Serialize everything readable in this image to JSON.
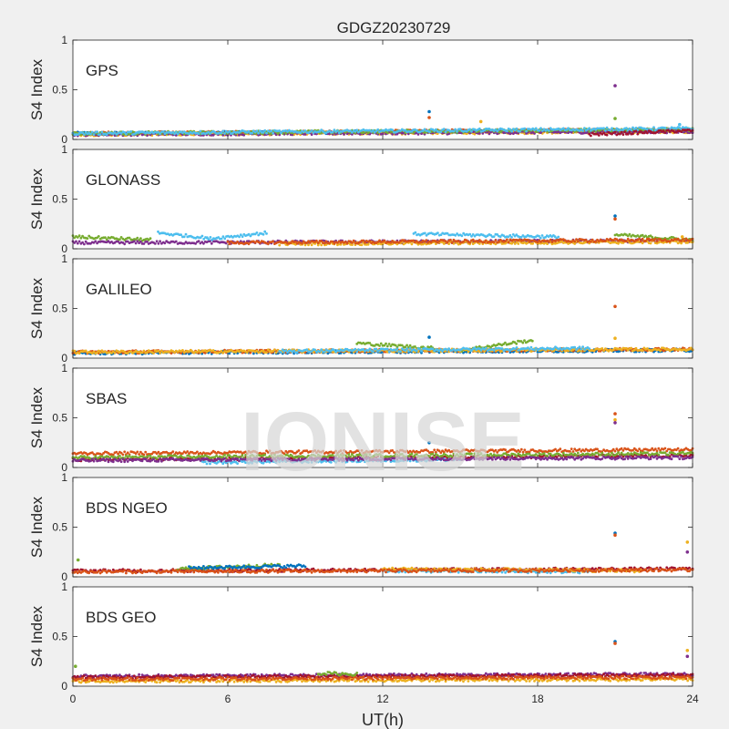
{
  "figure": {
    "title": "GDGZ20230729",
    "watermark": "IONISE",
    "background_color": "#f0f0f0"
  },
  "chart_data": {
    "type": "scatter",
    "xlabel": "UT(h)",
    "ylabel": "S4 Index",
    "xlim": [
      0,
      24
    ],
    "ylim": [
      0,
      1
    ],
    "x_ticks": [
      "0",
      "6",
      "12",
      "18",
      "24"
    ],
    "y_ticks": [
      "0",
      "0.5",
      "1"
    ],
    "grid": false,
    "series_colors": [
      "#0072BD",
      "#D95319",
      "#EDB120",
      "#7E2F8E",
      "#77AC30",
      "#4DBEEE",
      "#A2142F"
    ],
    "panels": [
      {
        "label": "GPS",
        "baseline": 0.08,
        "bands": [
          {
            "color": "#0072BD",
            "x": [
              0,
              24
            ],
            "y": [
              0.06,
              0.09
            ]
          },
          {
            "color": "#D95319",
            "x": [
              0,
              24
            ],
            "y": [
              0.06,
              0.1
            ]
          },
          {
            "color": "#EDB120",
            "x": [
              0,
              24
            ],
            "y": [
              0.05,
              0.08
            ]
          },
          {
            "color": "#7E2F8E",
            "x": [
              0,
              24
            ],
            "y": [
              0.05,
              0.08
            ]
          },
          {
            "color": "#77AC30",
            "x": [
              0,
              24
            ],
            "y": [
              0.06,
              0.1
            ]
          },
          {
            "color": "#4DBEEE",
            "x": [
              0,
              24
            ],
            "y": [
              0.06,
              0.11
            ]
          },
          {
            "color": "#A2142F",
            "x": [
              20,
              24
            ],
            "y": [
              0.05,
              0.09
            ]
          }
        ],
        "spikes": [
          {
            "x": 13.8,
            "y": 0.28
          },
          {
            "x": 13.8,
            "y": 0.22
          },
          {
            "x": 15.8,
            "y": 0.18
          },
          {
            "x": 21.0,
            "y": 0.54
          },
          {
            "x": 21.0,
            "y": 0.21
          },
          {
            "x": 23.5,
            "y": 0.15
          }
        ]
      },
      {
        "label": "GLONASS",
        "baseline": 0.08,
        "bands": [
          {
            "color": "#77AC30",
            "x": [
              0,
              3
            ],
            "y": [
              0.12,
              0.09
            ]
          },
          {
            "color": "#7E2F8E",
            "x": [
              0,
              24
            ],
            "y": [
              0.06,
              0.08
            ]
          },
          {
            "color": "#4DBEEE",
            "x": [
              3.3,
              5.2
            ],
            "y": [
              0.16,
              0.11
            ]
          },
          {
            "color": "#4DBEEE",
            "x": [
              5.2,
              7.5
            ],
            "y": [
              0.1,
              0.16
            ]
          },
          {
            "color": "#4DBEEE",
            "x": [
              13.2,
              18.8
            ],
            "y": [
              0.15,
              0.12
            ]
          },
          {
            "color": "#77AC30",
            "x": [
              21.0,
              24
            ],
            "y": [
              0.14,
              0.09
            ]
          },
          {
            "color": "#EDB120",
            "x": [
              8,
              24
            ],
            "y": [
              0.05,
              0.07
            ]
          },
          {
            "color": "#D95319",
            "x": [
              6,
              24
            ],
            "y": [
              0.06,
              0.09
            ]
          }
        ],
        "spikes": [
          {
            "x": 21.0,
            "y": 0.33
          },
          {
            "x": 21.0,
            "y": 0.3
          },
          {
            "x": 23.6,
            "y": 0.12
          }
        ]
      },
      {
        "label": "GALILEO",
        "baseline": 0.07,
        "bands": [
          {
            "color": "#0072BD",
            "x": [
              0,
              24
            ],
            "y": [
              0.05,
              0.08
            ]
          },
          {
            "color": "#D95319",
            "x": [
              0,
              24
            ],
            "y": [
              0.06,
              0.09
            ]
          },
          {
            "color": "#77AC30",
            "x": [
              11,
              14
            ],
            "y": [
              0.15,
              0.1
            ]
          },
          {
            "color": "#77AC30",
            "x": [
              15,
              17.8
            ],
            "y": [
              0.08,
              0.18
            ]
          },
          {
            "color": "#EDB120",
            "x": [
              0,
              24
            ],
            "y": [
              0.06,
              0.09
            ]
          },
          {
            "color": "#4DBEEE",
            "x": [
              8,
              20
            ],
            "y": [
              0.07,
              0.1
            ]
          }
        ],
        "spikes": [
          {
            "x": 13.8,
            "y": 0.21
          },
          {
            "x": 21.0,
            "y": 0.52
          },
          {
            "x": 21.0,
            "y": 0.2
          }
        ]
      },
      {
        "label": "SBAS",
        "baseline": 0.12,
        "bands": [
          {
            "color": "#D95319",
            "x": [
              0,
              24
            ],
            "y": [
              0.14,
              0.18
            ]
          },
          {
            "color": "#A2142F",
            "x": [
              0,
              24
            ],
            "y": [
              0.08,
              0.12
            ]
          },
          {
            "color": "#77AC30",
            "x": [
              0,
              24
            ],
            "y": [
              0.1,
              0.14
            ]
          },
          {
            "color": "#4DBEEE",
            "x": [
              5,
              15
            ],
            "y": [
              0.05,
              0.08
            ]
          },
          {
            "color": "#7E2F8E",
            "x": [
              0,
              24
            ],
            "y": [
              0.07,
              0.1
            ]
          }
        ],
        "spikes": [
          {
            "x": 13.8,
            "y": 0.25
          },
          {
            "x": 21.0,
            "y": 0.54
          },
          {
            "x": 21.0,
            "y": 0.48
          },
          {
            "x": 21.0,
            "y": 0.45
          }
        ]
      },
      {
        "label": "BDS NGEO",
        "baseline": 0.07,
        "bands": [
          {
            "color": "#A2142F",
            "x": [
              0,
              24
            ],
            "y": [
              0.06,
              0.08
            ]
          },
          {
            "color": "#77AC30",
            "x": [
              4,
              8
            ],
            "y": [
              0.08,
              0.12
            ]
          },
          {
            "color": "#0072BD",
            "x": [
              4.5,
              9
            ],
            "y": [
              0.09,
              0.11
            ]
          },
          {
            "color": "#4DBEEE",
            "x": [
              12,
              20
            ],
            "y": [
              0.06,
              0.05
            ]
          },
          {
            "color": "#EDB120",
            "x": [
              12,
              22
            ],
            "y": [
              0.08,
              0.06
            ]
          },
          {
            "color": "#D95319",
            "x": [
              0,
              24
            ],
            "y": [
              0.05,
              0.07
            ]
          }
        ],
        "spikes": [
          {
            "x": 21.0,
            "y": 0.44
          },
          {
            "x": 21.0,
            "y": 0.42
          },
          {
            "x": 23.8,
            "y": 0.35
          },
          {
            "x": 23.8,
            "y": 0.25
          },
          {
            "x": 0.2,
            "y": 0.17
          }
        ]
      },
      {
        "label": "BDS GEO",
        "baseline": 0.1,
        "bands": [
          {
            "color": "#7E2F8E",
            "x": [
              0,
              24
            ],
            "y": [
              0.1,
              0.12
            ]
          },
          {
            "color": "#A2142F",
            "x": [
              0,
              24
            ],
            "y": [
              0.09,
              0.11
            ]
          },
          {
            "color": "#EDB120",
            "x": [
              0,
              24
            ],
            "y": [
              0.05,
              0.07
            ]
          },
          {
            "color": "#D95319",
            "x": [
              0,
              24
            ],
            "y": [
              0.07,
              0.09
            ]
          },
          {
            "color": "#77AC30",
            "x": [
              9.5,
              11
            ],
            "y": [
              0.13,
              0.12
            ]
          }
        ],
        "spikes": [
          {
            "x": 21.0,
            "y": 0.45
          },
          {
            "x": 21.0,
            "y": 0.43
          },
          {
            "x": 23.8,
            "y": 0.36
          },
          {
            "x": 23.8,
            "y": 0.3
          },
          {
            "x": 0.1,
            "y": 0.2
          }
        ]
      }
    ]
  }
}
